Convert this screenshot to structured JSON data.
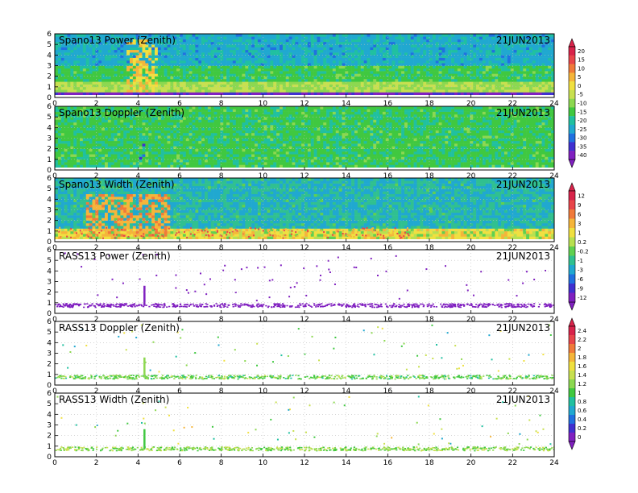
{
  "date_label": "21JUN2013",
  "chart_data": [
    {
      "type": "heatmap",
      "title": "Spano13  Power  (Zenith)",
      "date_label": "21JUN2013",
      "x_ticks": [
        0,
        2,
        4,
        6,
        8,
        10,
        12,
        14,
        16,
        18,
        20,
        22,
        24
      ],
      "y_ticks": [
        0,
        1,
        2,
        3,
        4,
        5,
        6
      ],
      "xlim": [
        0,
        24
      ],
      "ylim": [
        0,
        6
      ],
      "grid": true,
      "colorbar": "power_scale",
      "description_regions": [
        {
          "x": [
            0,
            24
          ],
          "y": [
            0.3,
            0.5
          ],
          "value": -38
        },
        {
          "x": [
            0,
            24
          ],
          "y": [
            0.5,
            1.5
          ],
          "value": -8
        },
        {
          "x": [
            0,
            24
          ],
          "y": [
            1.5,
            3.0
          ],
          "value": -16
        },
        {
          "x": [
            0,
            24
          ],
          "y": [
            3.0,
            6.0
          ],
          "value": -24
        },
        {
          "x": [
            3.5,
            5.0
          ],
          "y": [
            0.5,
            5.5
          ],
          "value": 2
        }
      ]
    },
    {
      "type": "heatmap",
      "title": "Spano13  Doppler  (Zenith)",
      "date_label": "21JUN2013",
      "x_ticks": [
        0,
        2,
        4,
        6,
        8,
        10,
        12,
        14,
        16,
        18,
        20,
        22,
        24
      ],
      "y_ticks": [
        0,
        1,
        2,
        3,
        4,
        5,
        6
      ],
      "xlim": [
        0,
        24
      ],
      "ylim": [
        0,
        6
      ],
      "grid": true,
      "colorbar": "power_scale",
      "description_regions": [
        {
          "x": [
            0,
            24
          ],
          "y": [
            0.3,
            6.0
          ],
          "value": -16
        },
        {
          "x": [
            4.0,
            4.3
          ],
          "y": [
            0.8,
            2.4
          ],
          "value": -35
        }
      ]
    },
    {
      "type": "heatmap",
      "title": "Spano13  Width  (Zenith)",
      "date_label": "21JUN2013",
      "x_ticks": [
        0,
        2,
        4,
        6,
        8,
        10,
        12,
        14,
        16,
        18,
        20,
        22,
        24
      ],
      "y_ticks": [
        0,
        1,
        2,
        3,
        4,
        5,
        6
      ],
      "xlim": [
        0,
        24
      ],
      "ylim": [
        0,
        6
      ],
      "grid": true,
      "colorbar": "width_scale",
      "description_regions": [
        {
          "x": [
            0,
            24
          ],
          "y": [
            0.3,
            1.2
          ],
          "value": 1
        },
        {
          "x": [
            0,
            24
          ],
          "y": [
            1.2,
            6.0
          ],
          "value": -2
        },
        {
          "x": [
            1.5,
            5.5
          ],
          "y": [
            0.5,
            4.5
          ],
          "value": 4
        }
      ]
    },
    {
      "type": "scatter",
      "title": "RASS13  Power  (Zenith)",
      "date_label": "21JUN2013",
      "x_ticks": [
        0,
        2,
        4,
        6,
        8,
        10,
        12,
        14,
        16,
        18,
        20,
        22,
        24
      ],
      "y_ticks": [
        0,
        1,
        2,
        3,
        4,
        5,
        6
      ],
      "xlim": [
        0,
        24
      ],
      "ylim": [
        0,
        6
      ],
      "grid": true,
      "colorbar": "width_scale",
      "band": {
        "y": [
          0.55,
          0.9
        ],
        "value": -12
      },
      "spike": {
        "x": 4.3,
        "y": [
          0.7,
          2.6
        ],
        "value": -12
      }
    },
    {
      "type": "scatter",
      "title": "RASS13  Doppler  (Zenith)",
      "date_label": "21JUN2013",
      "x_ticks": [
        0,
        2,
        4,
        6,
        8,
        10,
        12,
        14,
        16,
        18,
        20,
        22,
        24
      ],
      "y_ticks": [
        0,
        1,
        2,
        3,
        4,
        5,
        6
      ],
      "xlim": [
        0,
        24
      ],
      "ylim": [
        0,
        6
      ],
      "grid": true,
      "colorbar": "width_scale_2",
      "band": {
        "y": [
          0.55,
          0.9
        ],
        "value": 1.1
      },
      "spike": {
        "x": 4.3,
        "y": [
          0.7,
          2.6
        ],
        "value": 1.1
      }
    },
    {
      "type": "scatter",
      "title": "RASS13  Width  (Zenith)",
      "date_label": "21JUN2013",
      "x_ticks": [
        0,
        2,
        4,
        6,
        8,
        10,
        12,
        14,
        16,
        18,
        20,
        22,
        24
      ],
      "y_ticks": [
        0,
        1,
        2,
        3,
        4,
        5,
        6
      ],
      "xlim": [
        0,
        24
      ],
      "ylim": [
        0,
        6
      ],
      "grid": true,
      "colorbar": "width_scale_2",
      "band": {
        "y": [
          0.55,
          0.9
        ],
        "value": 1.2
      },
      "spike": {
        "x": 4.3,
        "y": [
          0.7,
          2.6
        ],
        "value": 1.0
      }
    }
  ],
  "colorbars": {
    "power_scale": {
      "labels": [
        "20",
        "15",
        "10",
        "5",
        "0",
        "-5",
        "-10",
        "-15",
        "-20",
        "-25",
        "-30",
        "-35",
        "-40"
      ],
      "colors": [
        "#d8234a",
        "#e8454a",
        "#f07a3a",
        "#f5b53a",
        "#f0e040",
        "#c8e050",
        "#8cd850",
        "#40c840",
        "#20c0a0",
        "#20a8d0",
        "#2070e0",
        "#4030d0",
        "#8020c0"
      ]
    },
    "width_scale": {
      "labels": [
        "12",
        "9",
        "6",
        "3",
        "1",
        "0.2",
        "-0.2",
        "-1",
        "-3",
        "-6",
        "-9",
        "-12"
      ],
      "colors": [
        "#d8234a",
        "#e8454a",
        "#f07a3a",
        "#f5b53a",
        "#f0e040",
        "#b8e050",
        "#60d050",
        "#30c090",
        "#20a8d0",
        "#2070e0",
        "#4030d0",
        "#8020c0"
      ]
    },
    "width_scale_2": {
      "labels": [
        "2.4",
        "2.2",
        "2",
        "1.8",
        "1.6",
        "1.4",
        "1.2",
        "1",
        "0.8",
        "0.6",
        "0.4",
        "0.2",
        "0"
      ],
      "colors": [
        "#d8234a",
        "#e8454a",
        "#f07a3a",
        "#f5b53a",
        "#f0e040",
        "#c8e050",
        "#8cd850",
        "#40c840",
        "#20c0a0",
        "#20a8d0",
        "#2070e0",
        "#4030d0",
        "#8020c0"
      ]
    }
  }
}
